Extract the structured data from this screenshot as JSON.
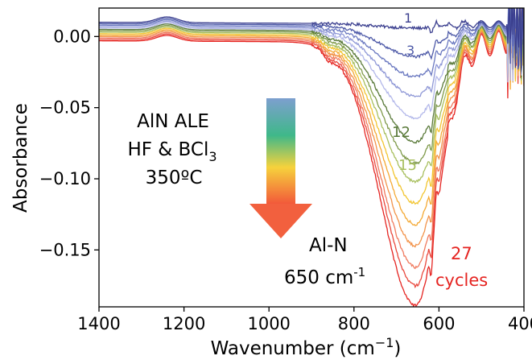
{
  "chart_data": {
    "type": "line",
    "xlabel": "Wavenumber (cm",
    "xlabel_sup": "−1",
    "xlabel_close": ")",
    "ylabel": "Absorbance",
    "xlim": [
      1400,
      400
    ],
    "ylim": [
      -0.19,
      0.02
    ],
    "x_reversed": true,
    "grid": false,
    "x_ticks": [
      1400,
      1200,
      1000,
      800,
      600,
      400
    ],
    "x_tick_labels": [
      "1400",
      "1200",
      "1000",
      "800",
      "600",
      "400"
    ],
    "y_ticks": [
      0.0,
      -0.05,
      -0.1,
      -0.15
    ],
    "y_tick_labels": [
      "0.00",
      "−0.05",
      "−0.10",
      "−0.15"
    ],
    "colors": [
      "#3b3f8f",
      "#4e5aa8",
      "#6a78c0",
      "#8e97d6",
      "#b3b8ea",
      "#5a7a3a",
      "#7f9a4a",
      "#a8bf5e",
      "#f2c530",
      "#f4a934",
      "#f2934a",
      "#f07a5e",
      "#e9483d",
      "#e52421"
    ],
    "series_depth": [
      0.003,
      0.022,
      0.035,
      0.048,
      0.062,
      0.078,
      0.092,
      0.104,
      0.118,
      0.132,
      0.146,
      0.16,
      0.172,
      0.185
    ],
    "series_offset": [
      0.0,
      -0.001,
      -0.002,
      -0.003,
      -0.004,
      -0.005,
      -0.006,
      -0.007,
      -0.008,
      -0.009,
      -0.01,
      -0.011,
      -0.012,
      -0.013
    ]
  },
  "annotations": {
    "label_1": "1",
    "label_3": "3",
    "label_12": "12",
    "label_15": "15",
    "label_27": "27",
    "label_cycles": "cycles",
    "process_line1": "AlN ALE",
    "process_line2_pre": "HF & BCl",
    "process_line2_sub": "3",
    "process_line3": "350ºC",
    "peak_line1": "Al-N",
    "peak_line2_pre": "650 cm",
    "peak_line2_sup": "-1"
  }
}
